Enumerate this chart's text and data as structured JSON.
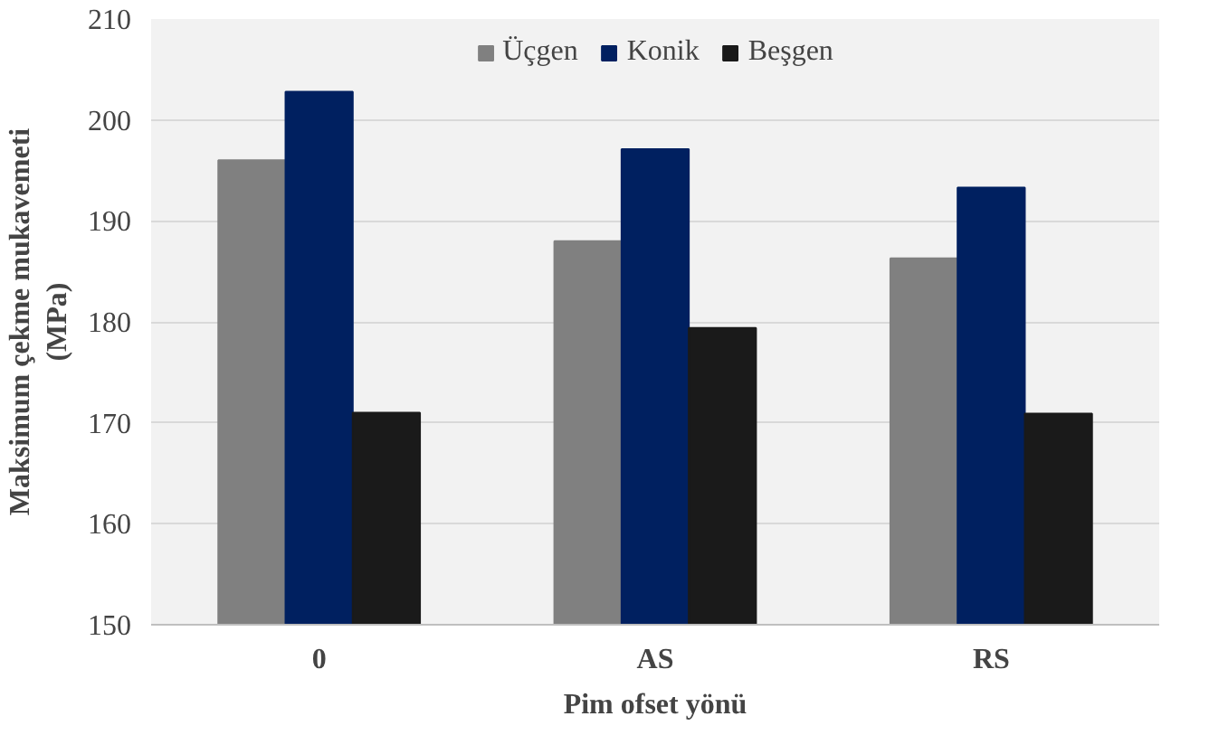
{
  "chart_data": {
    "type": "bar",
    "xlabel": "Pim ofset yönü",
    "ylabel": "Maksimum çekme mukavemeti (MPa)",
    "categories": [
      "0",
      "AS",
      "RS"
    ],
    "series": [
      {
        "name": "Üçgen",
        "color": "#808080",
        "values": [
          196,
          188,
          186.3
        ]
      },
      {
        "name": "Konik",
        "color": "#002060",
        "values": [
          202.8,
          197.1,
          193.3
        ]
      },
      {
        "name": "Beşgen",
        "color": "#1a1a1a",
        "values": [
          171,
          179.4,
          170.9
        ]
      }
    ],
    "ylim": [
      150,
      210
    ],
    "yticks": [
      150,
      160,
      170,
      180,
      190,
      200,
      210
    ],
    "grid": "y",
    "legend": "top"
  }
}
